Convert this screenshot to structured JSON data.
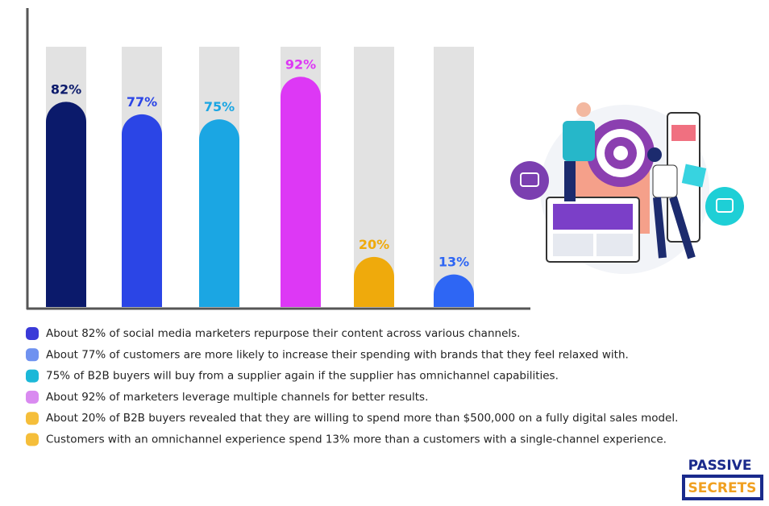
{
  "chart_data": {
    "type": "bar",
    "categories": [
      null,
      null,
      null,
      null,
      null,
      null
    ],
    "values": [
      82,
      77,
      75,
      92,
      20,
      13
    ],
    "value_labels": [
      "82%",
      "77%",
      "75%",
      "92%",
      "20%",
      "13%"
    ],
    "colors": [
      "#0b1a6b",
      "#2b45e6",
      "#1ba6e3",
      "#dd38f5",
      "#efaa0c",
      "#2e66f4"
    ],
    "ylim": [
      0,
      104
    ],
    "notes": [
      {
        "text": "About 82% of social media marketers repurpose their content across various channels.",
        "color": "#3a3ad8"
      },
      {
        "text": " About 77% of customers are more likely to increase their spending with brands that they feel relaxed with.",
        "color": "#6f92f0"
      },
      {
        "text": "75% of B2B buyers will buy from a supplier again if the supplier has omnichannel capabilities.",
        "color": "#1bb8d8"
      },
      {
        "text": "About 92% of marketers leverage multiple channels for better results.",
        "color": "#d98af0"
      },
      {
        "text": "About 20% of B2B buyers revealed that they are willing to spend more than $500,000 on a fully digital sales model.",
        "color": "#f5be3a"
      },
      {
        "text": "Customers with an omnichannel experience spend 13% more than a customers with a single-channel experience.",
        "color": "#f5be3a"
      }
    ]
  },
  "logo": {
    "line1": "PASSIVE",
    "line2": "SECRETS"
  }
}
